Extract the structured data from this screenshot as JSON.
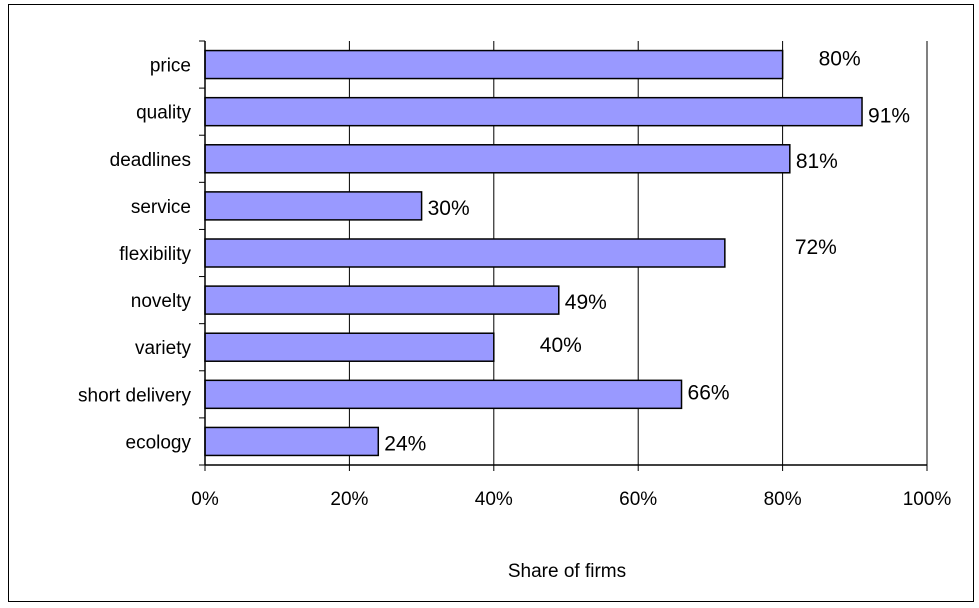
{
  "chart_data": {
    "type": "bar",
    "orientation": "horizontal",
    "categories": [
      "price",
      "quality",
      "deadlines",
      "service",
      "flexibility",
      "novelty",
      "variety",
      "short delivery",
      "ecology"
    ],
    "values": [
      80,
      91,
      81,
      30,
      72,
      49,
      40,
      66,
      24
    ],
    "data_labels": [
      "80%",
      "91%",
      "81%",
      "30%",
      "72%",
      "49%",
      "40%",
      "66%",
      "24%"
    ],
    "title": "",
    "xlabel": "Share of firms",
    "ylabel": "",
    "xlim": [
      0,
      100
    ],
    "x_ticks": [
      0,
      20,
      40,
      60,
      80,
      100
    ],
    "x_tick_labels": [
      "0%",
      "20%",
      "40%",
      "60%",
      "80%",
      "100%"
    ],
    "grid": "vertical",
    "legend": "none",
    "colors": {
      "bar_fill": "#9999ff",
      "bar_stroke": "#000000",
      "grid": "#000000"
    }
  }
}
